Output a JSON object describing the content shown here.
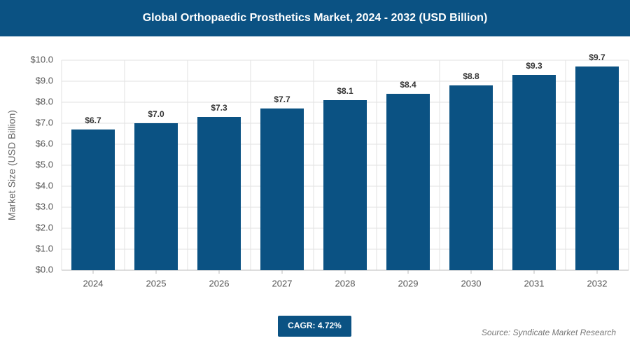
{
  "chart_data": {
    "type": "bar",
    "title": "Global Orthopaedic Prosthetics Market, 2024 - 2032 (USD Billion)",
    "y_label": "Market Size (USD Billion)",
    "categories": [
      "2024",
      "2025",
      "2026",
      "2027",
      "2028",
      "2029",
      "2030",
      "2031",
      "2032"
    ],
    "values": [
      6.7,
      7.0,
      7.3,
      7.7,
      8.1,
      8.4,
      8.8,
      9.3,
      9.7
    ],
    "value_labels": [
      "$6.7",
      "$7.0",
      "$7.3",
      "$7.7",
      "$8.1",
      "$8.4",
      "$8.8",
      "$9.3",
      "$9.7"
    ],
    "color": "#0b5283",
    "ylim": [
      0,
      10
    ],
    "yticks": [
      {
        "value": 0,
        "label": "$0.0"
      },
      {
        "value": 1,
        "label": "$1.0"
      },
      {
        "value": 2,
        "label": "$2.0"
      },
      {
        "value": 3,
        "label": "$3.0"
      },
      {
        "value": 4,
        "label": "$4.0"
      },
      {
        "value": 5,
        "label": "$5.0"
      },
      {
        "value": 6,
        "label": "$6.0"
      },
      {
        "value": 7,
        "label": "$7.0"
      },
      {
        "value": 8,
        "label": "$8.0"
      },
      {
        "value": 9,
        "label": "$9.0"
      },
      {
        "value": 10,
        "label": "$10.0"
      }
    ],
    "grid": true,
    "cagr": "CAGR: 4.72%",
    "source": "Source: Syndicate Market Research"
  }
}
